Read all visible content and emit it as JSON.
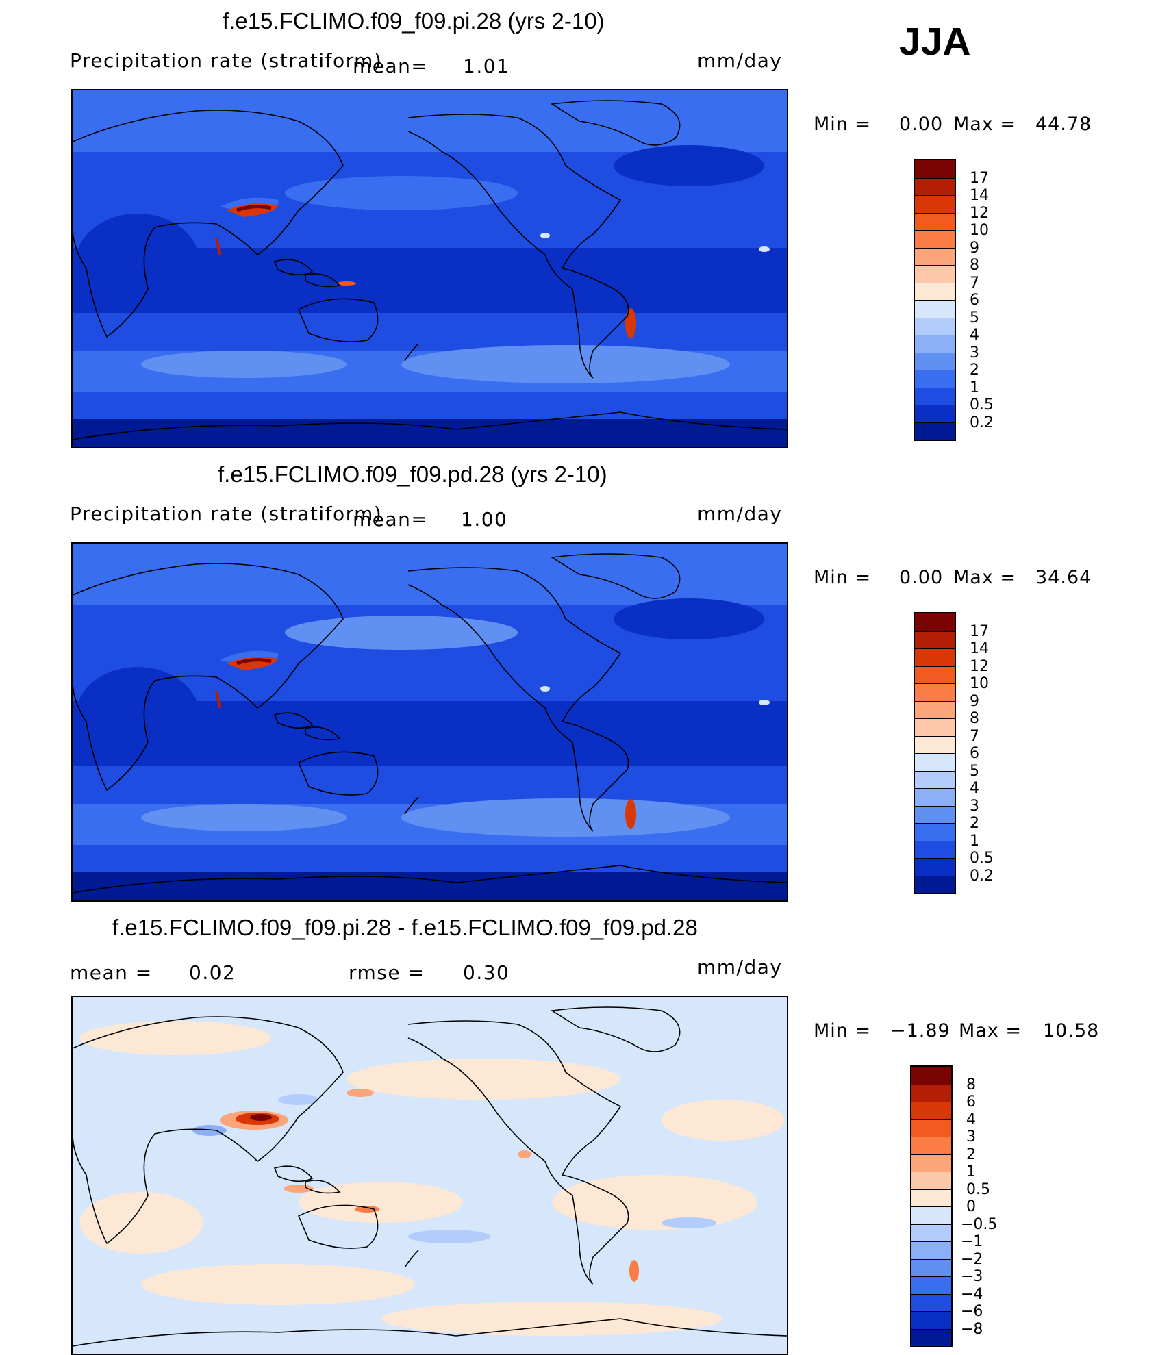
{
  "season": "JJA",
  "panels": [
    {
      "id": "pi",
      "title": "f.e15.FCLIMO.f09_f09.pi.28 (yrs 2-10)",
      "variable": "Precipitation rate (stratiform)",
      "mean_label": "mean=",
      "mean_value": "1.01",
      "units": "mm/day",
      "min_label": "Min =",
      "min_value": "0.00",
      "max_label": "Max =",
      "max_value": "44.78",
      "colorbar_labels": [
        "17",
        "14",
        "12",
        "10",
        "9",
        "8",
        "7",
        "6",
        "5",
        "4",
        "3",
        "2",
        "1",
        "0.5",
        "0.2"
      ],
      "colorbar_colors": [
        "#7a0403",
        "#b31e04",
        "#d93806",
        "#f25a1f",
        "#fa7d45",
        "#fca47a",
        "#fdc8a9",
        "#fde8d6",
        "#d6e6fb",
        "#b2cdfb",
        "#8cb0f8",
        "#6190f3",
        "#3a6ef0",
        "#1f4de2",
        "#0a2fc4",
        "#001a94"
      ]
    },
    {
      "id": "pd",
      "title": "f.e15.FCLIMO.f09_f09.pd.28 (yrs 2-10)",
      "variable": "Precipitation rate (stratiform)",
      "mean_label": "mean=",
      "mean_value": "1.00",
      "units": "mm/day",
      "min_label": "Min =",
      "min_value": "0.00",
      "max_label": "Max =",
      "max_value": "34.64",
      "colorbar_labels": [
        "17",
        "14",
        "12",
        "10",
        "9",
        "8",
        "7",
        "6",
        "5",
        "4",
        "3",
        "2",
        "1",
        "0.5",
        "0.2"
      ],
      "colorbar_colors": [
        "#7a0403",
        "#b31e04",
        "#d93806",
        "#f25a1f",
        "#fa7d45",
        "#fca47a",
        "#fdc8a9",
        "#fde8d6",
        "#d6e6fb",
        "#b2cdfb",
        "#8cb0f8",
        "#6190f3",
        "#3a6ef0",
        "#1f4de2",
        "#0a2fc4",
        "#001a94"
      ]
    },
    {
      "id": "diff",
      "title": "f.e15.FCLIMO.f09_f09.pi.28 - f.e15.FCLIMO.f09_f09.pd.28",
      "mean_label": "mean =",
      "mean_value": "0.02",
      "rmse_label": "rmse =",
      "rmse_value": "0.30",
      "units": "mm/day",
      "min_label": "Min =",
      "min_value": "−1.89",
      "max_label": "Max =",
      "max_value": "10.58",
      "colorbar_labels": [
        "8",
        "6",
        "4",
        "3",
        "2",
        "1",
        "0.5",
        "0",
        "−0.5",
        "−1",
        "−2",
        "−3",
        "−4",
        "−6",
        "−8"
      ],
      "colorbar_colors": [
        "#7a0403",
        "#b31e04",
        "#d93806",
        "#f25a1f",
        "#fa7d45",
        "#fca47a",
        "#fdc8a9",
        "#fde8d6",
        "#d6e6fb",
        "#b2cdfb",
        "#8cb0f8",
        "#6190f3",
        "#3a6ef0",
        "#1f4de2",
        "#0a2fc4",
        "#001a94"
      ]
    }
  ],
  "chart_data": [
    {
      "type": "heatmap",
      "title": "f.e15.FCLIMO.f09_f09.pi.28 (yrs 2-10)",
      "variable": "Precipitation rate (stratiform)",
      "units": "mm/day",
      "mean": 1.01,
      "min": 0.0,
      "max": 44.78,
      "levels": [
        0.2,
        0.5,
        1,
        2,
        3,
        4,
        5,
        6,
        7,
        8,
        9,
        10,
        12,
        14,
        17
      ],
      "projection": "global cylindrical equidistant, Pacific-centered"
    },
    {
      "type": "heatmap",
      "title": "f.e15.FCLIMO.f09_f09.pd.28 (yrs 2-10)",
      "variable": "Precipitation rate (stratiform)",
      "units": "mm/day",
      "mean": 1.0,
      "min": 0.0,
      "max": 34.64,
      "levels": [
        0.2,
        0.5,
        1,
        2,
        3,
        4,
        5,
        6,
        7,
        8,
        9,
        10,
        12,
        14,
        17
      ],
      "projection": "global cylindrical equidistant, Pacific-centered"
    },
    {
      "type": "heatmap",
      "title": "f.e15.FCLIMO.f09_f09.pi.28 - f.e15.FCLIMO.f09_f09.pd.28",
      "units": "mm/day",
      "mean": 0.02,
      "rmse": 0.3,
      "min": -1.89,
      "max": 10.58,
      "levels": [
        -8,
        -6,
        -4,
        -3,
        -2,
        -1,
        -0.5,
        0,
        0.5,
        1,
        2,
        3,
        4,
        6,
        8
      ],
      "projection": "global cylindrical equidistant, Pacific-centered"
    }
  ]
}
